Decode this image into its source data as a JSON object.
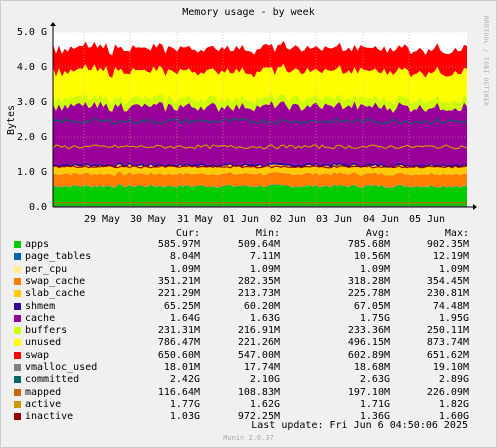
{
  "chart_data": {
    "type": "area",
    "title": "Memory usage - by week",
    "ylabel": "Bytes",
    "ylim": [
      0,
      5.0
    ],
    "y_unit": "G",
    "y_ticks": [
      "0.0",
      "1.0 G",
      "2.0 G",
      "3.0 G",
      "4.0 G",
      "5.0 G"
    ],
    "x_ticks": [
      "29 May",
      "30 May",
      "31 May",
      "01 Jun",
      "02 Jun",
      "03 Jun",
      "04 Jun",
      "05 Jun"
    ],
    "grid": true,
    "legend_placement": "bottom",
    "columns": [
      "Cur:",
      "Min:",
      "Avg:",
      "Max:"
    ],
    "series": [
      {
        "name": "apps",
        "color": "#00cc00",
        "cur": "585.97M",
        "min": "509.64M",
        "avg": "785.68M",
        "max": "902.35M",
        "stack_g": 0.59
      },
      {
        "name": "page_tables",
        "color": "#0066b3",
        "cur": "8.04M",
        "min": "7.11M",
        "avg": "10.56M",
        "max": "12.19M",
        "stack_g": 0.01
      },
      {
        "name": "per_cpu",
        "color": "#ffec8c",
        "cur": "1.09M",
        "min": "1.09M",
        "avg": "1.09M",
        "max": "1.09M",
        "stack_g": 0.001
      },
      {
        "name": "swap_cache",
        "color": "#ff8000",
        "cur": "351.21M",
        "min": "282.35M",
        "avg": "318.28M",
        "max": "354.45M",
        "stack_g": 0.35
      },
      {
        "name": "slab_cache",
        "color": "#ffcc00",
        "cur": "221.29M",
        "min": "213.73M",
        "avg": "225.78M",
        "max": "230.81M",
        "stack_g": 0.22
      },
      {
        "name": "shmem",
        "color": "#330099",
        "cur": "65.25M",
        "min": "60.20M",
        "avg": "67.05M",
        "max": "74.48M",
        "stack_g": 0.065
      },
      {
        "name": "cache",
        "color": "#990099",
        "cur": "1.64G",
        "min": "1.63G",
        "avg": "1.75G",
        "max": "1.95G",
        "stack_g": 1.64
      },
      {
        "name": "buffers",
        "color": "#ccff00",
        "cur": "231.31M",
        "min": "216.91M",
        "avg": "233.36M",
        "max": "250.11M",
        "stack_g": 0.23
      },
      {
        "name": "unused",
        "color": "#ffff00",
        "cur": "786.47M",
        "min": "221.26M",
        "avg": "496.15M",
        "max": "873.74M",
        "stack_g": 0.79
      },
      {
        "name": "swap",
        "color": "#ff0000",
        "cur": "650.60M",
        "min": "547.00M",
        "avg": "602.89M",
        "max": "651.62M",
        "stack_g": 0.65
      },
      {
        "name": "vmalloc_used",
        "color": "#808080",
        "cur": "18.01M",
        "min": "17.74M",
        "avg": "18.68M",
        "max": "19.10M"
      },
      {
        "name": "committed",
        "color": "#006666",
        "cur": "2.42G",
        "min": "2.10G",
        "avg": "2.63G",
        "max": "2.89G"
      },
      {
        "name": "mapped",
        "color": "#cc6600",
        "cur": "116.64M",
        "min": "108.83M",
        "avg": "197.10M",
        "max": "226.09M"
      },
      {
        "name": "active",
        "color": "#cc9900",
        "cur": "1.77G",
        "min": "1.62G",
        "avg": "1.71G",
        "max": "1.82G"
      },
      {
        "name": "inactive",
        "color": "#990000",
        "cur": "1.03G",
        "min": "972.25M",
        "avg": "1.36G",
        "max": "1.60G"
      }
    ]
  },
  "footer": {
    "last_update": "Last update: Fri Jun  6 04:50:06 2025",
    "version": "Munin 2.0.37"
  },
  "watermark": "RRDTOOL / TOBI OETIKER"
}
